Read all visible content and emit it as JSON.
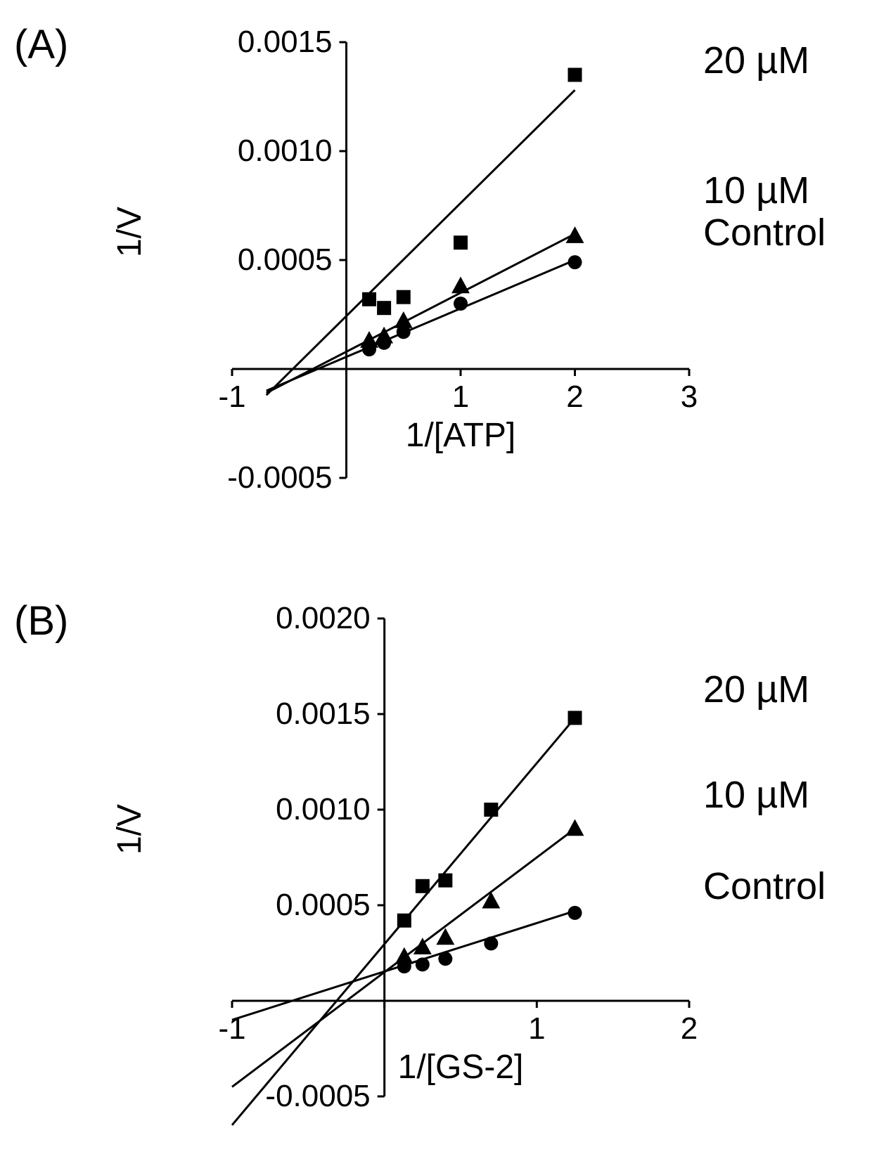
{
  "panels": {
    "A": {
      "label": "(A)",
      "xlabel": "1/[ATP]",
      "ylabel": "1/V",
      "xlim": [
        -1,
        3
      ],
      "ylim": [
        -0.0005,
        0.0015
      ],
      "xticks": [
        -1,
        0,
        1,
        2,
        3
      ],
      "yticks": [
        -0.0005,
        0,
        0.0005,
        0.001,
        0.0015
      ],
      "ytick_labels": [
        "-0.0005",
        "",
        "0.0005",
        "0.0010",
        "0.0015"
      ],
      "background_color": "#ffffff",
      "axis_color": "#000000",
      "axis_width": 3,
      "line_width": 3,
      "tick_length": 10,
      "label_fontsize": 48,
      "tick_fontsize": 44,
      "series_label_fontsize": 54,
      "series": [
        {
          "name": "20 µM",
          "marker": "square",
          "marker_size": 20,
          "color": "#000000",
          "points": [
            {
              "x": 0.2,
              "y": 0.00032
            },
            {
              "x": 0.33,
              "y": 0.00028
            },
            {
              "x": 0.5,
              "y": 0.00033
            },
            {
              "x": 1.0,
              "y": 0.00058
            },
            {
              "x": 2.0,
              "y": 0.00135
            }
          ],
          "line": {
            "x1": -0.7,
            "y1": -0.00012,
            "x2": 2.0,
            "y2": 0.00128
          }
        },
        {
          "name": "10 µM",
          "marker": "triangle",
          "marker_size": 22,
          "color": "#000000",
          "points": [
            {
              "x": 0.2,
              "y": 0.00013
            },
            {
              "x": 0.33,
              "y": 0.00015
            },
            {
              "x": 0.5,
              "y": 0.00022
            },
            {
              "x": 1.0,
              "y": 0.00038
            },
            {
              "x": 2.0,
              "y": 0.00061
            }
          ],
          "line": {
            "x1": -0.7,
            "y1": -0.00011,
            "x2": 2.0,
            "y2": 0.00062
          }
        },
        {
          "name": "Control",
          "marker": "circle",
          "marker_size": 20,
          "color": "#000000",
          "points": [
            {
              "x": 0.2,
              "y": 9e-05
            },
            {
              "x": 0.33,
              "y": 0.00012
            },
            {
              "x": 0.5,
              "y": 0.00017
            },
            {
              "x": 1.0,
              "y": 0.0003
            },
            {
              "x": 2.0,
              "y": 0.00049
            }
          ],
          "line": {
            "x1": -0.7,
            "y1": -0.0001,
            "x2": 2.0,
            "y2": 0.0005
          }
        }
      ]
    },
    "B": {
      "label": "(B)",
      "xlabel": "1/[GS-2]",
      "ylabel": "1/V",
      "xlim": [
        -1,
        2
      ],
      "ylim": [
        -0.0005,
        0.002
      ],
      "xticks": [
        -1,
        0,
        1,
        2
      ],
      "yticks": [
        -0.0005,
        0,
        0.0005,
        0.001,
        0.0015,
        0.002
      ],
      "ytick_labels": [
        "-0.0005",
        "",
        "0.0005",
        "0.0010",
        "0.0015",
        "0.0020"
      ],
      "background_color": "#ffffff",
      "axis_color": "#000000",
      "axis_width": 3,
      "line_width": 3,
      "tick_length": 10,
      "label_fontsize": 48,
      "tick_fontsize": 44,
      "series_label_fontsize": 54,
      "series": [
        {
          "name": "20 µM",
          "marker": "square",
          "marker_size": 20,
          "color": "#000000",
          "points": [
            {
              "x": 0.13,
              "y": 0.00042
            },
            {
              "x": 0.25,
              "y": 0.0006
            },
            {
              "x": 0.4,
              "y": 0.00063
            },
            {
              "x": 0.7,
              "y": 0.001
            },
            {
              "x": 1.25,
              "y": 0.00148
            }
          ],
          "line": {
            "x1": -1.0,
            "y1": -0.00065,
            "x2": 1.25,
            "y2": 0.00148
          }
        },
        {
          "name": "10 µM",
          "marker": "triangle",
          "marker_size": 22,
          "color": "#000000",
          "points": [
            {
              "x": 0.13,
              "y": 0.00023
            },
            {
              "x": 0.25,
              "y": 0.00028
            },
            {
              "x": 0.4,
              "y": 0.00033
            },
            {
              "x": 0.7,
              "y": 0.00052
            },
            {
              "x": 1.25,
              "y": 0.0009
            }
          ],
          "line": {
            "x1": -1.0,
            "y1": -0.00045,
            "x2": 1.25,
            "y2": 0.0009
          }
        },
        {
          "name": "Control",
          "marker": "circle",
          "marker_size": 20,
          "color": "#000000",
          "points": [
            {
              "x": 0.13,
              "y": 0.00018
            },
            {
              "x": 0.25,
              "y": 0.00019
            },
            {
              "x": 0.4,
              "y": 0.00022
            },
            {
              "x": 0.7,
              "y": 0.0003
            },
            {
              "x": 1.25,
              "y": 0.00046
            }
          ],
          "line": {
            "x1": -1.0,
            "y1": -0.0001,
            "x2": 1.25,
            "y2": 0.00047
          }
        }
      ]
    }
  }
}
